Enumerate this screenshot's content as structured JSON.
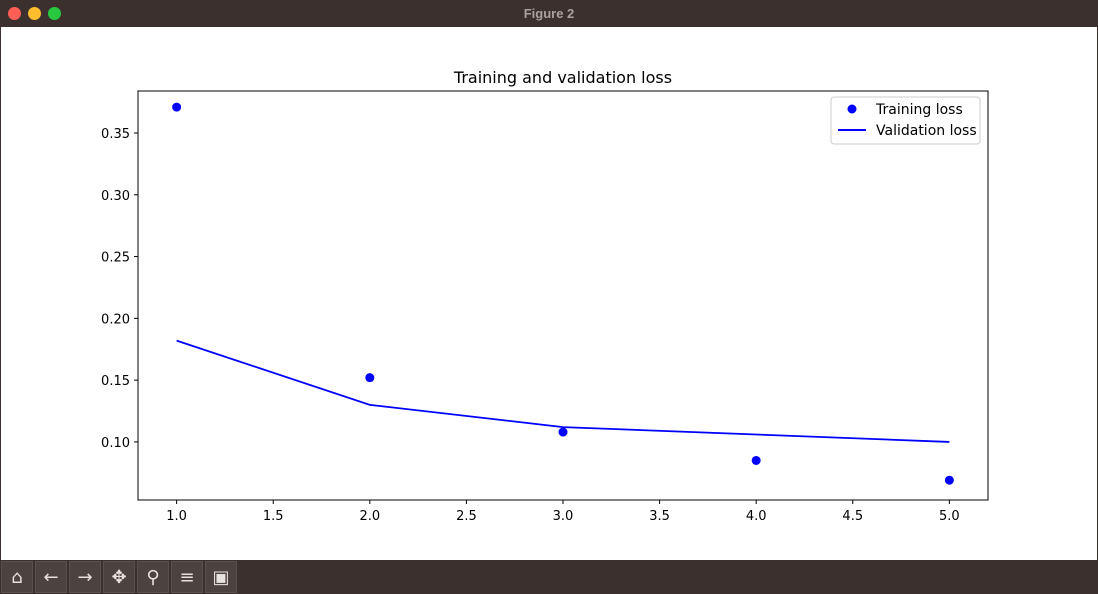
{
  "window": {
    "title": "Figure 2"
  },
  "toolbar": {
    "buttons": [
      {
        "name": "home-icon",
        "glyph": "⌂"
      },
      {
        "name": "back-arrow-icon",
        "glyph": "←"
      },
      {
        "name": "forward-arrow-icon",
        "glyph": "→"
      },
      {
        "name": "pan-icon",
        "glyph": "✥"
      },
      {
        "name": "zoom-icon",
        "glyph": "⚲"
      },
      {
        "name": "configure-subplots-icon",
        "glyph": "≡"
      },
      {
        "name": "save-icon",
        "glyph": "▣"
      }
    ]
  },
  "chart_data": {
    "type": "scatter",
    "title": "Training and validation loss",
    "xlabel": "",
    "ylabel": "",
    "xlim": [
      0.8,
      5.2
    ],
    "ylim": [
      0.053,
      0.384
    ],
    "xticks": [
      "1.0",
      "1.5",
      "2.0",
      "2.5",
      "3.0",
      "3.5",
      "4.0",
      "4.5",
      "5.0"
    ],
    "yticks": [
      "0.10",
      "0.15",
      "0.20",
      "0.25",
      "0.30",
      "0.35"
    ],
    "legend_position": "top-right",
    "series": [
      {
        "name": "Training loss",
        "kind": "scatter",
        "color": "#0000ff",
        "x": [
          1,
          2,
          3,
          4,
          5
        ],
        "y": [
          0.371,
          0.152,
          0.108,
          0.085,
          0.069
        ]
      },
      {
        "name": "Validation loss",
        "kind": "line",
        "color": "#0000ff",
        "x": [
          1,
          2,
          3,
          4,
          5
        ],
        "y": [
          0.182,
          0.13,
          0.112,
          0.106,
          0.1
        ]
      }
    ]
  }
}
